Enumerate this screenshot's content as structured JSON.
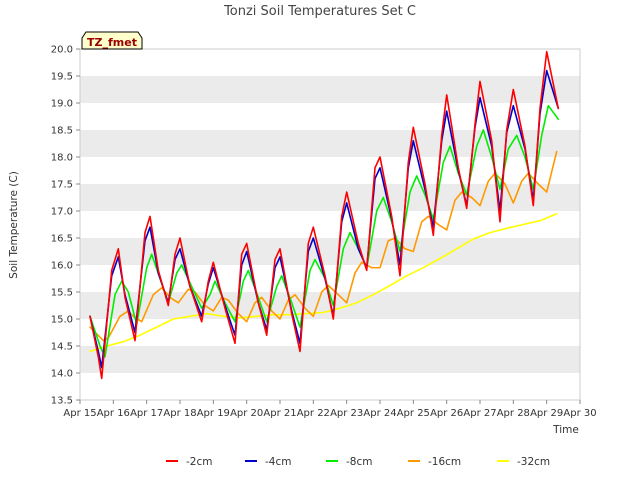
{
  "chart_data": {
    "type": "line",
    "title": "Tonzi Soil Temperatures Set C",
    "xlabel": "Time",
    "ylabel": "Soil Temperature (C)",
    "annotation": "TZ_fmet",
    "xlim": [
      15,
      30
    ],
    "ylim": [
      13.5,
      20.0
    ],
    "x_unit": "day of April",
    "x_ticks": [
      {
        "value": 15,
        "label": "Apr 15"
      },
      {
        "value": 16,
        "label": "Apr 16"
      },
      {
        "value": 17,
        "label": "Apr 17"
      },
      {
        "value": 18,
        "label": "Apr 18"
      },
      {
        "value": 19,
        "label": "Apr 19"
      },
      {
        "value": 20,
        "label": "Apr 20"
      },
      {
        "value": 21,
        "label": "Apr 21"
      },
      {
        "value": 22,
        "label": "Apr 22"
      },
      {
        "value": 23,
        "label": "Apr 23"
      },
      {
        "value": 24,
        "label": "Apr 24"
      },
      {
        "value": 25,
        "label": "Apr 25"
      },
      {
        "value": 26,
        "label": "Apr 26"
      },
      {
        "value": 27,
        "label": "Apr 27"
      },
      {
        "value": 28,
        "label": "Apr 28"
      },
      {
        "value": 29,
        "label": "Apr 29"
      },
      {
        "value": 30,
        "label": "Apr 30"
      }
    ],
    "y_ticks": [
      "13.5",
      "14.0",
      "14.5",
      "15.0",
      "15.5",
      "16.0",
      "16.5",
      "17.0",
      "17.5",
      "18.0",
      "18.5",
      "19.0",
      "19.5",
      "20.0"
    ],
    "grid": "horizontal bands",
    "legend_position": "bottom",
    "series": [
      {
        "name": "-2cm",
        "color": "#ff0000",
        "x": [
          15.3,
          15.55,
          15.65,
          15.95,
          16.15,
          16.35,
          16.65,
          16.95,
          17.1,
          17.35,
          17.65,
          17.85,
          18.0,
          18.3,
          18.65,
          18.85,
          19.0,
          19.35,
          19.65,
          19.85,
          20.0,
          20.35,
          20.6,
          20.85,
          21.0,
          21.35,
          21.6,
          21.85,
          22.0,
          22.35,
          22.6,
          22.85,
          23.0,
          23.35,
          23.6,
          23.85,
          24.0,
          24.35,
          24.6,
          24.85,
          25.0,
          25.35,
          25.6,
          25.85,
          26.0,
          26.35,
          26.6,
          26.85,
          27.0,
          27.35,
          27.6,
          27.8,
          28.0,
          28.35,
          28.6,
          28.8,
          29.0,
          29.35
        ],
        "y": [
          15.05,
          14.3,
          13.9,
          15.9,
          16.3,
          15.4,
          14.6,
          16.6,
          16.9,
          15.9,
          15.25,
          16.2,
          16.5,
          15.6,
          14.95,
          15.7,
          16.05,
          15.2,
          14.55,
          16.2,
          16.4,
          15.3,
          14.7,
          16.1,
          16.3,
          15.1,
          14.4,
          16.4,
          16.7,
          15.8,
          15.0,
          16.9,
          17.35,
          16.4,
          15.9,
          17.8,
          18.0,
          16.9,
          15.8,
          17.9,
          18.55,
          17.5,
          16.55,
          18.4,
          19.15,
          17.8,
          17.05,
          18.6,
          19.4,
          18.3,
          16.8,
          18.5,
          19.25,
          18.2,
          17.1,
          18.9,
          19.95,
          18.9
        ]
      },
      {
        "name": "-4cm",
        "color": "#0000cc",
        "x": [
          15.3,
          15.55,
          15.65,
          15.95,
          16.15,
          16.35,
          16.65,
          16.95,
          17.1,
          17.35,
          17.65,
          17.85,
          18.0,
          18.3,
          18.65,
          18.85,
          19.0,
          19.35,
          19.65,
          19.85,
          20.0,
          20.35,
          20.6,
          20.85,
          21.0,
          21.35,
          21.6,
          21.85,
          22.0,
          22.35,
          22.6,
          22.85,
          23.0,
          23.35,
          23.6,
          23.85,
          24.0,
          24.35,
          24.6,
          24.85,
          25.0,
          25.35,
          25.6,
          25.85,
          26.0,
          26.35,
          26.6,
          26.85,
          27.0,
          27.35,
          27.6,
          27.8,
          28.0,
          28.35,
          28.6,
          28.8,
          29.0,
          29.35
        ],
        "y": [
          15.05,
          14.4,
          14.1,
          15.8,
          16.15,
          15.45,
          14.75,
          16.45,
          16.7,
          15.85,
          15.3,
          16.1,
          16.3,
          15.6,
          15.05,
          15.65,
          15.95,
          15.25,
          14.7,
          16.0,
          16.25,
          15.3,
          14.8,
          15.95,
          16.15,
          15.15,
          14.55,
          16.25,
          16.5,
          15.75,
          15.05,
          16.8,
          17.15,
          16.3,
          15.95,
          17.6,
          17.8,
          16.85,
          16.0,
          17.8,
          18.3,
          17.4,
          16.7,
          18.3,
          18.85,
          17.75,
          17.1,
          18.55,
          19.1,
          18.2,
          17.0,
          18.45,
          18.95,
          18.15,
          17.2,
          18.8,
          19.6,
          18.9
        ]
      },
      {
        "name": "-8cm",
        "color": "#00ee00",
        "x": [
          15.3,
          15.6,
          15.75,
          16.05,
          16.25,
          16.45,
          16.7,
          17.0,
          17.15,
          17.4,
          17.65,
          17.9,
          18.05,
          18.35,
          18.65,
          18.9,
          19.05,
          19.35,
          19.65,
          19.9,
          20.05,
          20.35,
          20.6,
          20.9,
          21.05,
          21.35,
          21.6,
          21.9,
          22.05,
          22.35,
          22.6,
          22.9,
          23.1,
          23.35,
          23.6,
          23.9,
          24.1,
          24.35,
          24.6,
          24.9,
          25.1,
          25.35,
          25.6,
          25.9,
          26.1,
          26.35,
          26.6,
          26.9,
          27.1,
          27.35,
          27.6,
          27.85,
          28.1,
          28.35,
          28.6,
          28.85,
          29.05,
          29.35
        ],
        "y": [
          15.05,
          14.5,
          14.3,
          15.45,
          15.7,
          15.5,
          14.9,
          15.95,
          16.2,
          15.75,
          15.3,
          15.85,
          16.0,
          15.6,
          15.2,
          15.45,
          15.7,
          15.3,
          14.95,
          15.7,
          15.9,
          15.4,
          14.95,
          15.6,
          15.8,
          15.3,
          14.85,
          15.9,
          16.1,
          15.75,
          15.25,
          16.3,
          16.6,
          16.3,
          15.95,
          17.0,
          17.25,
          16.8,
          16.25,
          17.35,
          17.65,
          17.3,
          16.85,
          17.9,
          18.2,
          17.7,
          17.3,
          18.2,
          18.5,
          18.0,
          17.4,
          18.15,
          18.4,
          18.0,
          17.4,
          18.4,
          18.95,
          18.7
        ]
      },
      {
        "name": "-16cm",
        "color": "#ff9900",
        "x": [
          15.3,
          15.7,
          15.85,
          16.2,
          16.45,
          16.6,
          16.85,
          17.2,
          17.45,
          17.7,
          17.95,
          18.25,
          18.45,
          18.75,
          19.0,
          19.25,
          19.45,
          19.75,
          20.0,
          20.25,
          20.45,
          20.75,
          21.0,
          21.25,
          21.45,
          21.75,
          22.0,
          22.25,
          22.45,
          22.75,
          23.0,
          23.25,
          23.45,
          23.75,
          24.0,
          24.25,
          24.45,
          24.75,
          25.0,
          25.25,
          25.45,
          25.75,
          26.0,
          26.25,
          26.45,
          26.75,
          27.0,
          27.25,
          27.45,
          27.75,
          28.0,
          28.25,
          28.45,
          28.75,
          29.0,
          29.3
        ],
        "y": [
          14.85,
          14.6,
          14.65,
          15.05,
          15.15,
          15.05,
          14.95,
          15.45,
          15.58,
          15.4,
          15.3,
          15.55,
          15.5,
          15.25,
          15.15,
          15.4,
          15.35,
          15.1,
          14.95,
          15.3,
          15.4,
          15.15,
          15.0,
          15.35,
          15.45,
          15.2,
          15.05,
          15.5,
          15.62,
          15.45,
          15.3,
          15.85,
          16.05,
          15.95,
          15.95,
          16.45,
          16.5,
          16.3,
          16.25,
          16.8,
          16.9,
          16.75,
          16.65,
          17.2,
          17.35,
          17.25,
          17.1,
          17.55,
          17.7,
          17.5,
          17.15,
          17.55,
          17.7,
          17.5,
          17.35,
          18.1
        ]
      },
      {
        "name": "-32cm",
        "color": "#ffff00",
        "x": [
          15.3,
          15.8,
          16.3,
          16.8,
          17.3,
          17.8,
          18.3,
          18.8,
          19.3,
          19.8,
          20.3,
          20.8,
          21.3,
          21.8,
          22.3,
          22.8,
          23.3,
          23.8,
          24.3,
          24.8,
          25.3,
          25.8,
          26.3,
          26.8,
          27.3,
          27.8,
          28.3,
          28.8,
          29.3
        ],
        "y": [
          14.4,
          14.5,
          14.58,
          14.7,
          14.85,
          15.0,
          15.05,
          15.1,
          15.05,
          15.02,
          15.05,
          15.08,
          15.08,
          15.1,
          15.12,
          15.2,
          15.3,
          15.45,
          15.62,
          15.8,
          15.95,
          16.12,
          16.3,
          16.48,
          16.6,
          16.68,
          16.75,
          16.82,
          16.95
        ]
      }
    ]
  }
}
